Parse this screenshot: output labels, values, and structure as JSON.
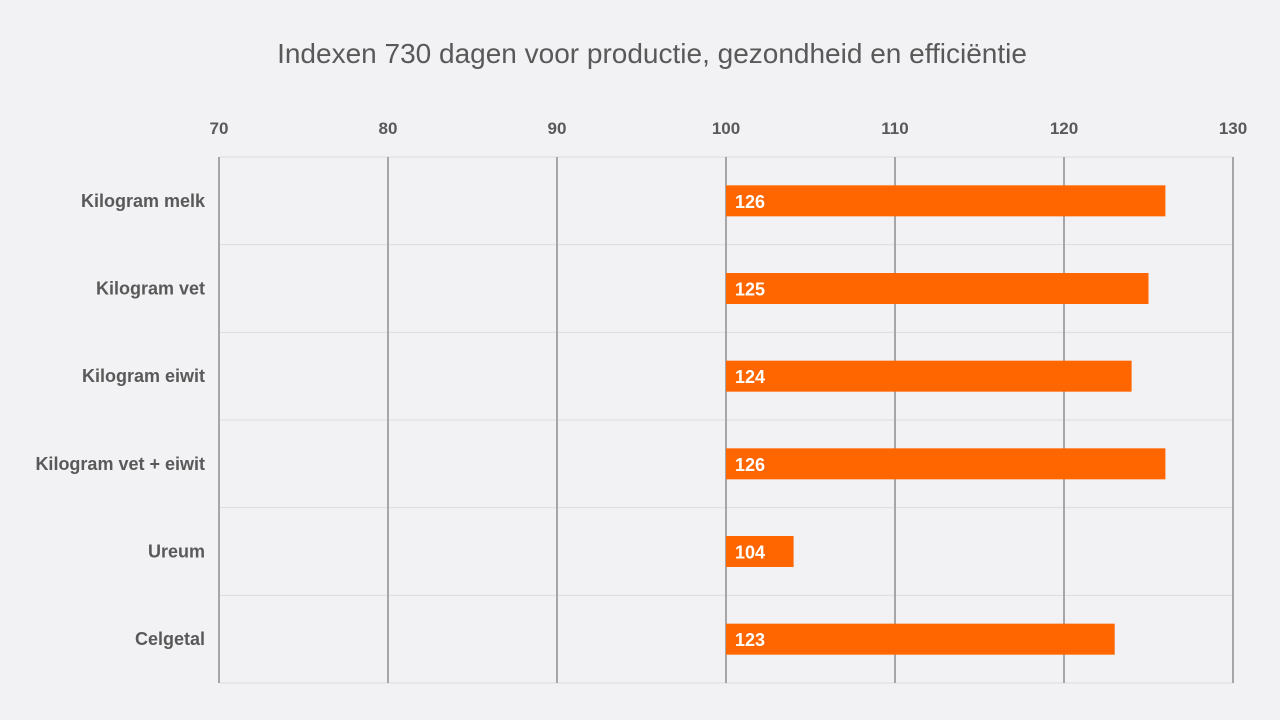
{
  "chart_data": {
    "type": "bar",
    "orientation": "horizontal",
    "title": "Indexen 730 dagen voor productie, gezondheid en efficiëntie",
    "categories": [
      "Kilogram melk",
      "Kilogram vet",
      "Kilogram eiwit",
      "Kilogram vet + eiwit",
      "Ureum",
      "Celgetal"
    ],
    "values": [
      126,
      125,
      124,
      126,
      104,
      123
    ],
    "baseline": 100,
    "xlim": [
      70,
      130
    ],
    "xticks": [
      70,
      80,
      90,
      100,
      110,
      120,
      130
    ],
    "axis_position": "top",
    "grid": true,
    "bar_color": "#ff6600",
    "data_labels": [
      "126",
      "125",
      "124",
      "126",
      "104",
      "123"
    ]
  }
}
